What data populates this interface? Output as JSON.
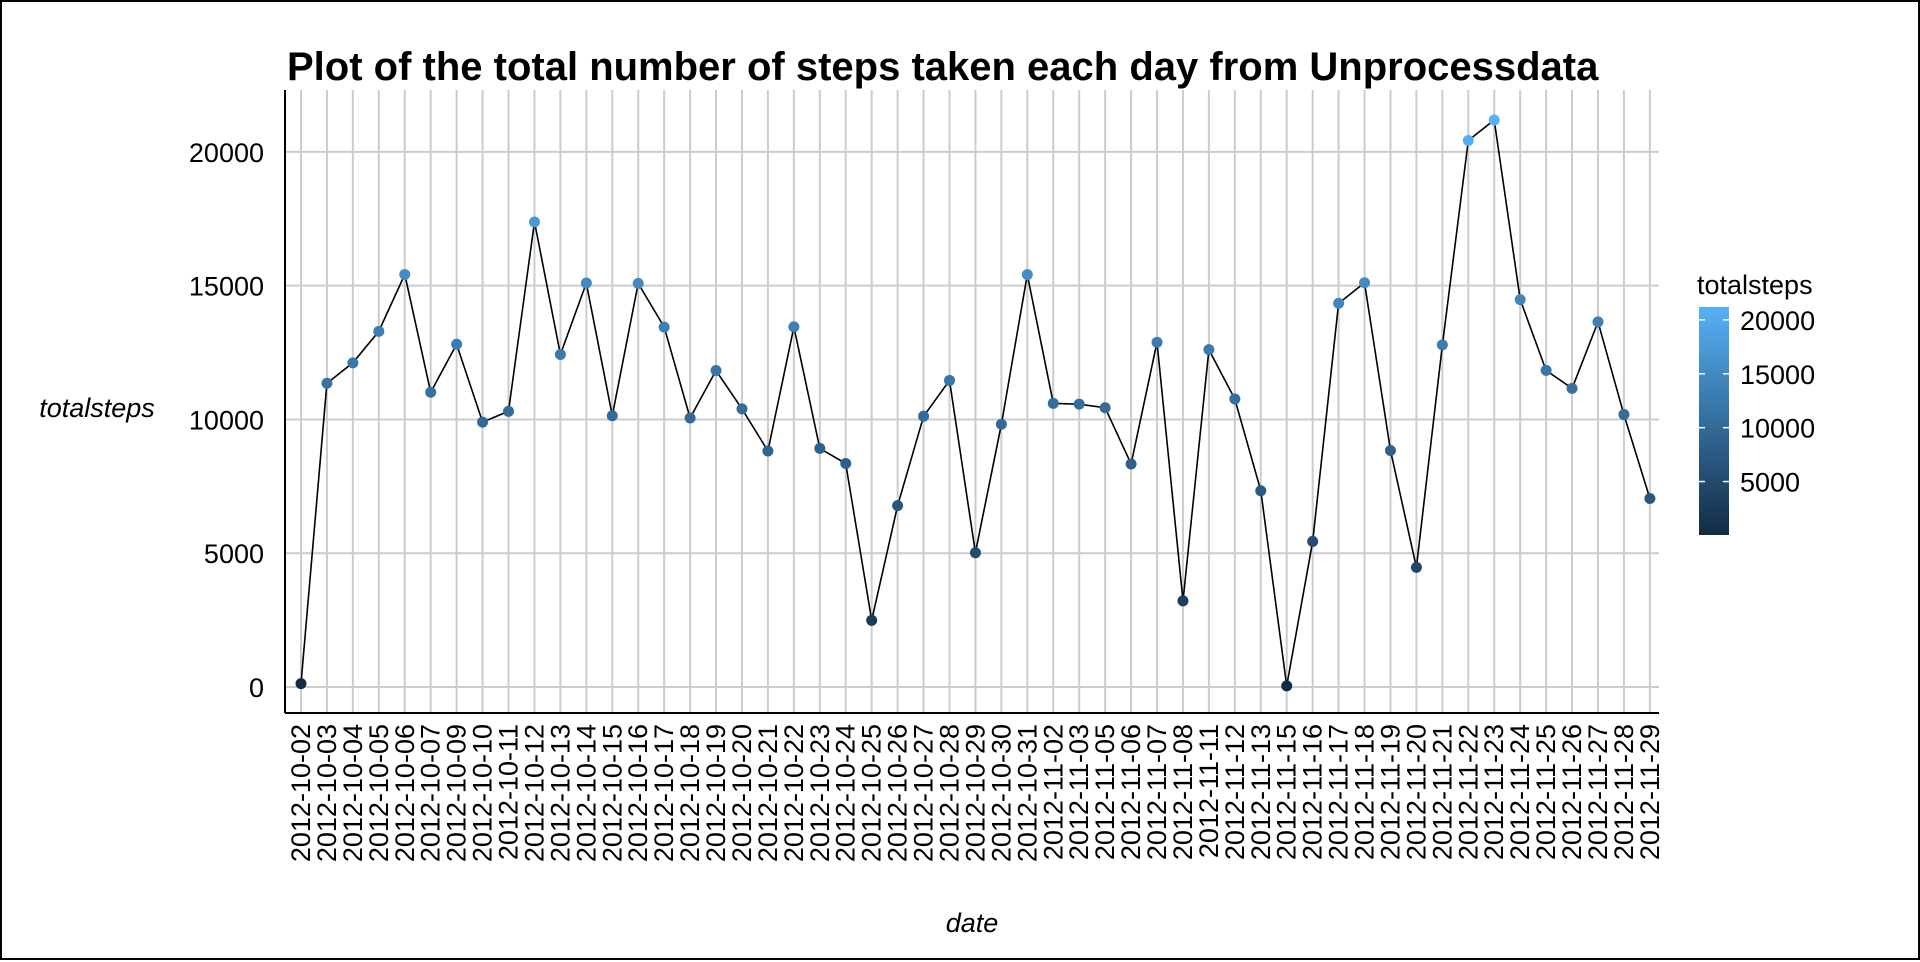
{
  "chart_data": {
    "type": "line",
    "title": "Plot of the total number of steps taken each day from Unprocessdata",
    "xlabel": "date",
    "ylabel": "totalsteps",
    "x": [
      "2012-10-02",
      "2012-10-03",
      "2012-10-04",
      "2012-10-05",
      "2012-10-06",
      "2012-10-07",
      "2012-10-09",
      "2012-10-10",
      "2012-10-11",
      "2012-10-12",
      "2012-10-13",
      "2012-10-14",
      "2012-10-15",
      "2012-10-16",
      "2012-10-17",
      "2012-10-18",
      "2012-10-19",
      "2012-10-20",
      "2012-10-21",
      "2012-10-22",
      "2012-10-23",
      "2012-10-24",
      "2012-10-25",
      "2012-10-26",
      "2012-10-27",
      "2012-10-28",
      "2012-10-29",
      "2012-10-30",
      "2012-10-31",
      "2012-11-02",
      "2012-11-03",
      "2012-11-05",
      "2012-11-06",
      "2012-11-07",
      "2012-11-08",
      "2012-11-11",
      "2012-11-12",
      "2012-11-13",
      "2012-11-15",
      "2012-11-16",
      "2012-11-17",
      "2012-11-18",
      "2012-11-19",
      "2012-11-20",
      "2012-11-21",
      "2012-11-22",
      "2012-11-23",
      "2012-11-24",
      "2012-11-25",
      "2012-11-26",
      "2012-11-27",
      "2012-11-28",
      "2012-11-29"
    ],
    "y": [
      126,
      11352,
      12116,
      13294,
      15420,
      11015,
      12811,
      9900,
      10304,
      17382,
      12426,
      15098,
      10139,
      15084,
      13452,
      10056,
      11829,
      10395,
      8821,
      13460,
      8918,
      8355,
      2492,
      6778,
      10119,
      11458,
      5018,
      9819,
      15414,
      10600,
      10571,
      10439,
      8334,
      12883,
      3219,
      12608,
      10765,
      7336,
      41,
      5441,
      14339,
      15110,
      8841,
      4472,
      12787,
      20427,
      21194,
      14478,
      11834,
      11162,
      13646,
      10183,
      7047
    ],
    "ylim": [
      -1000,
      22000
    ],
    "y_ticks": [
      0,
      5000,
      10000,
      15000,
      20000
    ],
    "grid": true,
    "legend": {
      "title": "totalsteps",
      "position": "right",
      "ticks": [
        5000,
        10000,
        15000,
        20000
      ],
      "low_color": "#132B43",
      "high_color": "#56B1F7"
    },
    "line_color": "#000000"
  }
}
